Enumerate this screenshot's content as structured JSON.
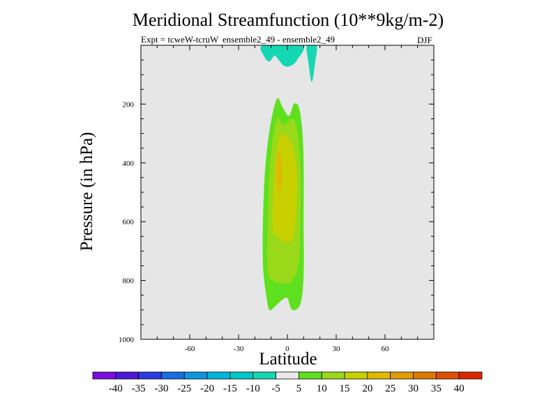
{
  "chart_data": {
    "type": "contour",
    "title": "Meridional Streamfunction (10**9kg/m-2)",
    "experiment_label": "Expt = tcweW-tcruW",
    "ensemble_label": "ensemble2_49 - ensemble2_49",
    "season": "DJF",
    "xlabel": "Latitude",
    "ylabel": "Pressure (in hPa)",
    "xlim": [
      -90,
      90
    ],
    "ylim": [
      1000,
      0
    ],
    "xticks": [
      -60,
      -30,
      0,
      30,
      60
    ],
    "yticks": [
      200,
      400,
      600,
      800,
      1000
    ],
    "colorbar": {
      "levels": [
        "-40",
        "-35",
        "-30",
        "-25",
        "-20",
        "-15",
        "-10",
        "-5",
        "5",
        "10",
        "15",
        "20",
        "25",
        "30",
        "35",
        "40"
      ],
      "colors": [
        "#7a0ddd",
        "#4b19d6",
        "#2a3be0",
        "#1a6ee0",
        "#0d96e0",
        "#00b4dc",
        "#00c8c8",
        "#16d7b3",
        "#e8e8e8",
        "#5fe01e",
        "#9ad81a",
        "#c8d000",
        "#e0b800",
        "#e09c00",
        "#e07800",
        "#e05000",
        "#d82800"
      ]
    },
    "background_color": "#e6e6e6",
    "contours": [
      {
        "name": "positive-5-10",
        "level_min": 5,
        "color": "#5fe01e",
        "points": [
          [
            -11,
            900
          ],
          [
            -13,
            850
          ],
          [
            -15,
            750
          ],
          [
            -15,
            600
          ],
          [
            -14,
            450
          ],
          [
            -12,
            330
          ],
          [
            -9,
            230
          ],
          [
            -6,
            180
          ],
          [
            -3,
            210
          ],
          [
            1,
            240
          ],
          [
            4,
            200
          ],
          [
            7,
            210
          ],
          [
            9,
            280
          ],
          [
            10,
            400
          ],
          [
            10,
            600
          ],
          [
            10,
            780
          ],
          [
            8,
            880
          ],
          [
            3,
            900
          ],
          [
            0,
            860
          ],
          [
            -3,
            865
          ],
          [
            -7,
            885
          ]
        ]
      },
      {
        "name": "positive-10-15",
        "level_min": 10,
        "color": "#9ad81a",
        "points": [
          [
            -12,
            770
          ],
          [
            -12,
            600
          ],
          [
            -11,
            440
          ],
          [
            -9,
            320
          ],
          [
            -6,
            250
          ],
          [
            -2,
            270
          ],
          [
            3,
            250
          ],
          [
            6,
            290
          ],
          [
            8,
            420
          ],
          [
            8,
            600
          ],
          [
            7,
            740
          ],
          [
            3,
            800
          ],
          [
            -3,
            810
          ],
          [
            -9,
            800
          ]
        ]
      },
      {
        "name": "positive-15-20",
        "level_min": 15,
        "color": "#c8d000",
        "points": [
          [
            -9,
            620
          ],
          [
            -8,
            450
          ],
          [
            -6,
            340
          ],
          [
            -3,
            300
          ],
          [
            1,
            320
          ],
          [
            4,
            360
          ],
          [
            6,
            460
          ],
          [
            5,
            600
          ],
          [
            3,
            660
          ],
          [
            -2,
            670
          ],
          [
            -6,
            650
          ]
        ]
      },
      {
        "name": "positive-20-25",
        "level_min": 20,
        "color": "#e0b800",
        "points": [
          [
            -6.5,
            470
          ],
          [
            -6.5,
            400
          ],
          [
            -5,
            360
          ],
          [
            -4,
            370
          ],
          [
            -3.5,
            430
          ],
          [
            -4,
            490
          ],
          [
            -5,
            500
          ]
        ]
      },
      {
        "name": "negative-top-left",
        "level_max": -5,
        "color": "#16d7b3",
        "points": [
          [
            -15,
            0
          ],
          [
            -14,
            40
          ],
          [
            -11,
            55
          ],
          [
            -8,
            35
          ],
          [
            -6,
            45
          ],
          [
            -2,
            70
          ],
          [
            2,
            70
          ],
          [
            6,
            50
          ],
          [
            9,
            0
          ]
        ]
      },
      {
        "name": "negative-top-right",
        "level_max": -5,
        "color": "#16d7b3",
        "points": [
          [
            12,
            0
          ],
          [
            13,
            60
          ],
          [
            15,
            125
          ],
          [
            17,
            60
          ],
          [
            18,
            0
          ]
        ]
      }
    ]
  }
}
